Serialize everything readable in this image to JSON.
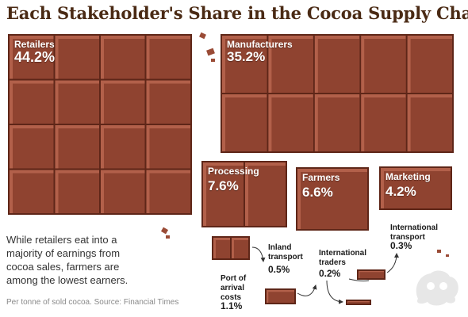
{
  "chart_data": {
    "type": "area",
    "title": "Each Stakeholder's Share in the Cocoa Supply Chain",
    "unit": "%",
    "description": "While retailers eat into a majority of earnings from cocoa sales, farmers are among the lowest earners.",
    "footnote": "Per tonne of sold cocoa. Source: Financial Times",
    "bars": [
      {
        "name": "Retailers",
        "label": "Retailers",
        "value": 44.2,
        "value_text": "44.2%"
      },
      {
        "name": "Manufacturers",
        "label": "Manufacturers",
        "value": 35.2,
        "value_text": "35.2%"
      },
      {
        "name": "Processing",
        "label": "Processing",
        "value": 7.6,
        "value_text": "7.6%"
      },
      {
        "name": "Farmers",
        "label": "Farmers",
        "value": 6.6,
        "value_text": "6.6%"
      },
      {
        "name": "Marketing",
        "label": "Marketing",
        "value": 4.2,
        "value_text": "4.2%"
      }
    ],
    "callouts": [
      {
        "name": "Port of arrival costs",
        "lines": [
          "Port of",
          "arrival",
          "costs"
        ],
        "value": 1.1,
        "value_text": "1.1%"
      },
      {
        "name": "Inland transport",
        "lines": [
          "Inland",
          "transport"
        ],
        "value": 0.5,
        "value_text": "0.5%"
      },
      {
        "name": "International traders",
        "lines": [
          "International",
          "traders"
        ],
        "value": 0.2,
        "value_text": "0.2%"
      },
      {
        "name": "International transport",
        "lines": [
          "International",
          "transport"
        ],
        "value": 0.3,
        "value_text": "0.3%"
      }
    ]
  },
  "colors": {
    "chocolate": "#8f4330",
    "chocolate_light": "#b2604a",
    "chocolate_dark": "#5e2618",
    "title": "#4a2a14"
  }
}
